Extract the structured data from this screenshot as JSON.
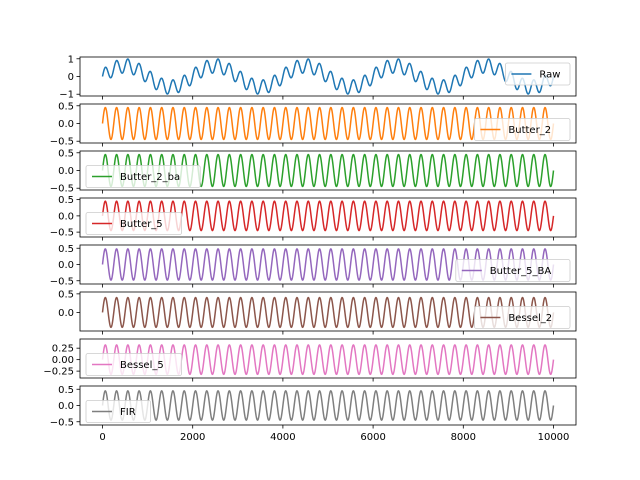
{
  "chart_data": {
    "type": "line",
    "x_range": [
      0,
      10000
    ],
    "x_ticks": [
      0,
      2000,
      4000,
      6000,
      8000,
      10000
    ],
    "x_tick_labels": [
      "0",
      "2000",
      "4000",
      "6000",
      "8000",
      "10000"
    ],
    "grid": false,
    "panels": [
      {
        "name": "Raw",
        "color": "#1f77b4",
        "legend": "top-right",
        "ylim": [
          -1.1,
          1.1
        ],
        "y_ticks": [
          1,
          0,
          -1
        ],
        "y_tick_labels": [
          "1",
          "0",
          "−1"
        ],
        "series": [
          {
            "name": "Raw",
            "components": [
              {
                "amplitude": 0.6,
                "period": 2000
              },
              {
                "amplitude": 0.4,
                "period": 250
              }
            ]
          }
        ]
      },
      {
        "name": "Butter_2",
        "color": "#ff7f0e",
        "legend": "right",
        "ylim": [
          -0.55,
          0.55
        ],
        "y_ticks": [
          0.5,
          0.0,
          -0.5
        ],
        "y_tick_labels": [
          "0.5",
          "0.0",
          "−0.5"
        ],
        "series": [
          {
            "name": "Butter_2",
            "components": [
              {
                "amplitude": 0.45,
                "period": 250
              }
            ]
          }
        ]
      },
      {
        "name": "Butter_2_ba",
        "color": "#2ca02c",
        "legend": "left",
        "ylim": [
          -0.55,
          0.55
        ],
        "y_ticks": [
          0.5,
          0.0,
          -0.5
        ],
        "y_tick_labels": [
          "0.5",
          "0.0",
          "−0.5"
        ],
        "series": [
          {
            "name": "Butter_2_ba",
            "components": [
              {
                "amplitude": 0.45,
                "period": 250
              }
            ]
          }
        ]
      },
      {
        "name": "Butter_5",
        "color": "#d62728",
        "legend": "left",
        "ylim": [
          -0.65,
          0.55
        ],
        "y_ticks": [
          0.5,
          0.0,
          -0.5
        ],
        "y_tick_labels": [
          "0.5",
          "0.0",
          "−0.5"
        ],
        "series": [
          {
            "name": "Butter_5",
            "components": [
              {
                "amplitude": 0.45,
                "period": 250
              }
            ]
          }
        ]
      },
      {
        "name": "Butter_5_BA",
        "color": "#9467bd",
        "legend": "right",
        "ylim": [
          -0.6,
          0.6
        ],
        "y_ticks": [
          0.5,
          0.0,
          -0.5
        ],
        "y_tick_labels": [
          "0.5",
          "0.0",
          "−0.5"
        ],
        "series": [
          {
            "name": "Butter_5_BA",
            "components": [
              {
                "amplitude": 0.48,
                "period": 250
              }
            ]
          }
        ]
      },
      {
        "name": "Bessel_2",
        "color": "#8c564b",
        "legend": "right",
        "ylim": [
          -0.5,
          0.55
        ],
        "y_ticks": [
          0.5,
          0.0
        ],
        "y_tick_labels": [
          "0.5",
          "0.0"
        ],
        "series": [
          {
            "name": "Bessel_2",
            "components": [
              {
                "amplitude": 0.4,
                "period": 250
              }
            ]
          }
        ]
      },
      {
        "name": "Bessel_5",
        "color": "#e377c2",
        "legend": "left",
        "ylim": [
          -0.4,
          0.45
        ],
        "y_ticks": [
          0.25,
          0.0,
          -0.25
        ],
        "y_tick_labels": [
          "0.25",
          "0.00",
          "−0.25"
        ],
        "series": [
          {
            "name": "Bessel_5",
            "components": [
              {
                "amplitude": 0.32,
                "period": 250
              }
            ]
          }
        ]
      },
      {
        "name": "FIR",
        "color": "#7f7f7f",
        "legend": "left",
        "ylim": [
          -0.6,
          0.6
        ],
        "y_ticks": [
          0.5,
          0.0,
          -0.5
        ],
        "y_tick_labels": [
          "0.5",
          "0.0",
          "−0.5"
        ],
        "series": [
          {
            "name": "FIR",
            "components": [
              {
                "amplitude": 0.45,
                "period": 250
              }
            ]
          }
        ]
      }
    ]
  }
}
